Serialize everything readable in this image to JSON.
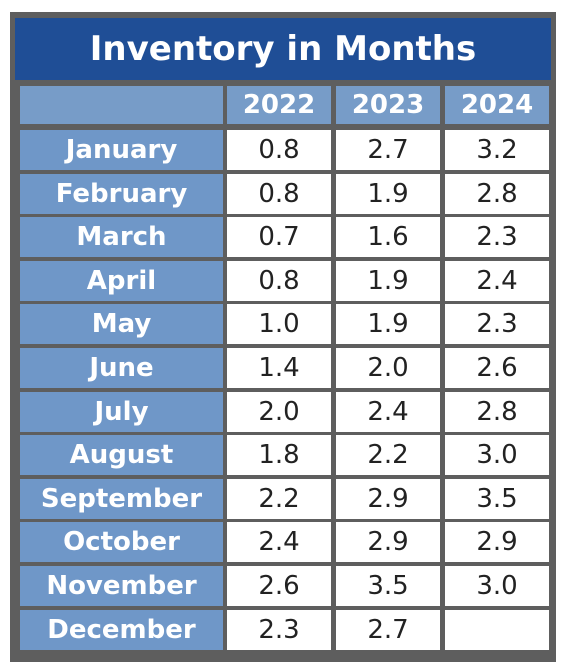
{
  "chart_data": {
    "type": "table",
    "title": "Inventory in Months",
    "columns": [
      "2022",
      "2023",
      "2024"
    ],
    "rows": [
      {
        "month": "January",
        "values": [
          "0.8",
          "2.7",
          "3.2"
        ]
      },
      {
        "month": "February",
        "values": [
          "0.8",
          "1.9",
          "2.8"
        ]
      },
      {
        "month": "March",
        "values": [
          "0.7",
          "1.6",
          "2.3"
        ]
      },
      {
        "month": "April",
        "values": [
          "0.8",
          "1.9",
          "2.4"
        ]
      },
      {
        "month": "May",
        "values": [
          "1.0",
          "1.9",
          "2.3"
        ]
      },
      {
        "month": "June",
        "values": [
          "1.4",
          "2.0",
          "2.6"
        ]
      },
      {
        "month": "July",
        "values": [
          "2.0",
          "2.4",
          "2.8"
        ]
      },
      {
        "month": "August",
        "values": [
          "1.8",
          "2.2",
          "3.0"
        ]
      },
      {
        "month": "September",
        "values": [
          "2.2",
          "2.9",
          "3.5"
        ]
      },
      {
        "month": "October",
        "values": [
          "2.4",
          "2.9",
          "2.9"
        ]
      },
      {
        "month": "November",
        "values": [
          "2.6",
          "3.5",
          "3.0"
        ]
      },
      {
        "month": "December",
        "values": [
          "2.3",
          "2.7",
          ""
        ]
      }
    ]
  },
  "colors": {
    "title_bg": "#1f4e96",
    "header_bg": "#779cc8",
    "month_bg": "#6f97c8",
    "frame": "#5e5e5e",
    "cell_bg": "#ffffff"
  }
}
